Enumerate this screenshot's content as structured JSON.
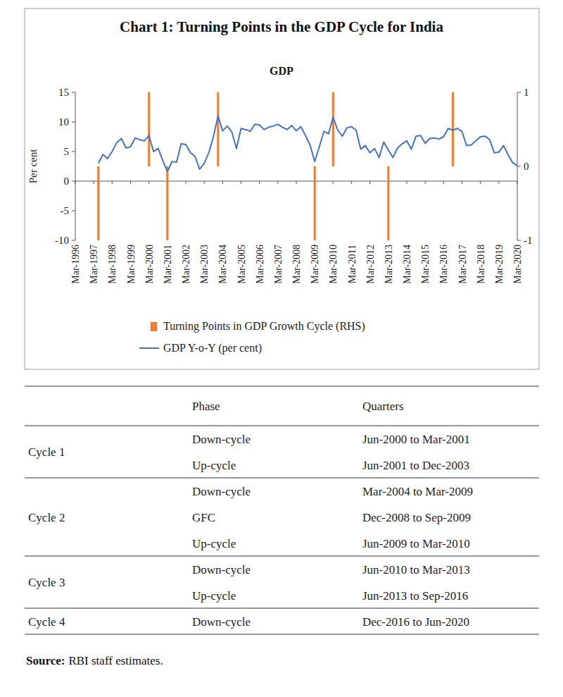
{
  "chart_data": {
    "type": "line",
    "title": "Chart 1: Turning Points in the GDP Cycle for India",
    "subtitle": "GDP",
    "y_label": "Per cent",
    "categories": [
      "Mar-1996",
      null,
      null,
      null,
      "Mar-1997",
      null,
      null,
      null,
      "Mar-1998",
      null,
      null,
      null,
      "Mar-1999",
      null,
      null,
      null,
      "Mar-2000",
      null,
      null,
      null,
      "Mar-2001",
      null,
      null,
      null,
      "Mar-2002",
      null,
      null,
      null,
      "Mar-2003",
      null,
      null,
      null,
      "Mar-2004",
      null,
      null,
      null,
      "Mar-2005",
      null,
      null,
      null,
      "Mar-2006",
      null,
      null,
      null,
      "Mar-2007",
      null,
      null,
      null,
      "Mar-2008",
      null,
      null,
      null,
      "Mar-2009",
      null,
      null,
      null,
      "Mar-2010",
      null,
      null,
      null,
      "Mar-2011",
      null,
      null,
      null,
      "Mar-2012",
      null,
      null,
      null,
      "Mar-2013",
      null,
      null,
      null,
      "Mar-2014",
      null,
      null,
      null,
      "Mar-2015",
      null,
      null,
      null,
      "Mar-2016",
      null,
      null,
      null,
      "Mar-2017",
      null,
      null,
      null,
      "Mar-2018",
      null,
      null,
      null,
      "Mar-2019",
      null,
      null,
      null,
      "Mar-2020"
    ],
    "series": [
      {
        "name": "Turning Points in GDP Growth Cycle (RHS)",
        "type": "bar",
        "axis": "y2",
        "color": "#ED7D31",
        "values": [
          null,
          null,
          null,
          null,
          null,
          -1,
          null,
          null,
          null,
          null,
          null,
          null,
          null,
          null,
          null,
          null,
          1,
          null,
          null,
          null,
          -1,
          null,
          null,
          null,
          null,
          null,
          null,
          null,
          null,
          null,
          null,
          1,
          null,
          null,
          null,
          null,
          null,
          null,
          null,
          null,
          null,
          null,
          null,
          null,
          null,
          null,
          null,
          null,
          null,
          null,
          null,
          null,
          -1,
          null,
          null,
          null,
          1,
          null,
          null,
          null,
          null,
          null,
          null,
          null,
          null,
          null,
          null,
          null,
          -1,
          null,
          null,
          null,
          null,
          null,
          null,
          null,
          null,
          null,
          null,
          null,
          null,
          null,
          1,
          null,
          null,
          null,
          null,
          null,
          null,
          null,
          null,
          null,
          null,
          null,
          null,
          null,
          null
        ]
      },
      {
        "name": "GDP Y-o-Y (per cent)",
        "type": "line",
        "color": "#4472C4",
        "values": [
          null,
          null,
          null,
          null,
          null,
          3.0,
          4.5,
          3.8,
          5.0,
          6.5,
          7.2,
          5.6,
          5.8,
          7.3,
          7.0,
          6.8,
          7.7,
          5.0,
          5.5,
          3.5,
          1.6,
          3.3,
          3.2,
          6.3,
          6.2,
          4.8,
          4.2,
          2.0,
          3.0,
          4.8,
          7.5,
          11.0,
          8.5,
          9.3,
          8.3,
          5.5,
          8.9,
          8.7,
          8.4,
          9.6,
          9.5,
          8.7,
          9.1,
          9.3,
          9.6,
          9.1,
          8.7,
          9.4,
          8.5,
          9.2,
          7.7,
          6.1,
          3.3,
          5.8,
          8.4,
          8.0,
          10.8,
          8.6,
          7.6,
          9.0,
          9.2,
          8.6,
          5.4,
          6.0,
          4.8,
          5.5,
          4.0,
          6.6,
          5.2,
          4.0,
          5.6,
          6.3,
          6.8,
          5.4,
          7.6,
          7.7,
          6.4,
          7.2,
          7.3,
          7.1,
          7.5,
          8.9,
          8.6,
          8.9,
          8.4,
          6.0,
          6.1,
          6.8,
          7.5,
          7.6,
          7.0,
          4.8,
          4.9,
          6.0,
          4.5,
          3.1,
          2.6
        ]
      }
    ],
    "ylim": [
      -10,
      15
    ],
    "yticks": [
      -10,
      -5,
      0,
      5,
      10,
      15
    ],
    "y2lim": [
      -1,
      1
    ],
    "y2ticks": [
      -1,
      0,
      1
    ],
    "grid": false,
    "legend": "bottom"
  },
  "table": {
    "header": [
      "Phase",
      "Quarters"
    ],
    "cycles": [
      {
        "name": "Cycle 1",
        "phases": [
          {
            "phase": "Down-cycle",
            "quarters": "Jun-2000 to Mar-2001"
          },
          {
            "phase": "Up-cycle",
            "quarters": "Jun-2001 to Dec-2003"
          }
        ]
      },
      {
        "name": "Cycle 2",
        "phases": [
          {
            "phase": "Down-cycle",
            "quarters": "Mar-2004 to Mar-2009"
          },
          {
            "phase": "GFC",
            "quarters": "Dec-2008 to Sep-2009"
          },
          {
            "phase": "Up-cycle",
            "quarters": "Jun-2009 to Mar-2010"
          }
        ]
      },
      {
        "name": "Cycle 3",
        "phases": [
          {
            "phase": "Down-cycle",
            "quarters": "Jun-2010 to Mar-2013"
          },
          {
            "phase": "Up-cycle",
            "quarters": "Jun-2013 to Sep-2016"
          }
        ]
      },
      {
        "name": "Cycle 4",
        "phases": [
          {
            "phase": "Down-cycle",
            "quarters": "Dec-2016 to Jun-2020"
          }
        ]
      }
    ]
  },
  "source": {
    "label": "Source:",
    "text": "RBI staff estimates."
  }
}
